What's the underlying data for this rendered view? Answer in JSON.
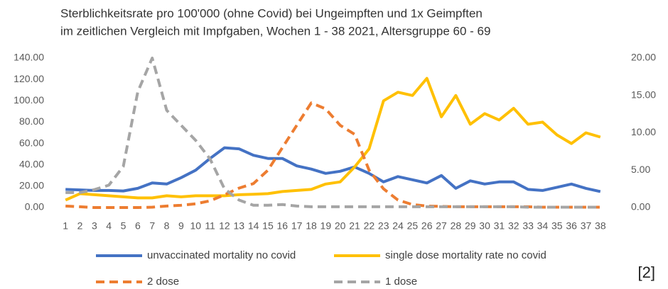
{
  "chart_data": {
    "type": "line",
    "title": [
      "Sterblichkeitsrate pro 100'000 (ohne Covid) bei Ungeimpften und 1x Geimpften",
      "im zeitlichen Vergleich mit Impfgaben, Wochen 1 - 38 2021, Altersgruppe 60 - 69"
    ],
    "categories": [
      "1",
      "2",
      "3",
      "4",
      "5",
      "6",
      "7",
      "8",
      "9",
      "10",
      "11",
      "12",
      "13",
      "14",
      "15",
      "16",
      "17",
      "18",
      "19",
      "20",
      "21",
      "22",
      "23",
      "24",
      "25",
      "26",
      "27",
      "28",
      "29",
      "30",
      "31",
      "32",
      "33",
      "34",
      "35",
      "36",
      "37",
      "38"
    ],
    "ylim": [
      0,
      140
    ],
    "yticks": [
      {
        "value": 0,
        "label": "0.00"
      },
      {
        "value": 20,
        "label": "20.00"
      },
      {
        "value": 40,
        "label": "40.00"
      },
      {
        "value": 60,
        "label": "60.00"
      },
      {
        "value": 80,
        "label": "80.00"
      },
      {
        "value": 100,
        "label": "100.00"
      },
      {
        "value": 120,
        "label": "120.00"
      },
      {
        "value": 140,
        "label": "140.00"
      }
    ],
    "y2lim": [
      0,
      20
    ],
    "y2ticks": [
      {
        "value": 0,
        "label": "0.00"
      },
      {
        "value": 5,
        "label": "5.00"
      },
      {
        "value": 10,
        "label": "10.00"
      },
      {
        "value": 15,
        "label": "15.00"
      },
      {
        "value": 20,
        "label": "20.00"
      }
    ],
    "grid": false,
    "legend": "bottom",
    "series": [
      {
        "name": "unvaccinated mortality no covid",
        "color": "#4472c4",
        "dashed": false,
        "values": [
          17,
          16.5,
          16,
          16,
          15.5,
          18,
          23,
          22,
          28,
          35,
          46,
          56,
          55,
          49,
          46,
          46,
          39,
          36,
          32,
          34,
          38,
          32,
          24,
          29,
          26,
          23,
          30,
          18,
          25,
          22,
          24,
          24,
          17,
          16,
          19,
          22,
          18,
          15
        ]
      },
      {
        "name": "single dose mortality rate no covid",
        "color": "#ffc000",
        "dashed": false,
        "values": [
          7,
          13,
          12,
          11,
          10,
          9,
          9,
          11,
          10,
          11,
          11,
          11,
          12,
          12.5,
          13,
          15,
          16,
          17,
          22,
          24,
          38,
          55,
          100,
          108,
          105,
          121,
          85,
          105,
          78,
          88,
          82,
          93,
          78,
          80,
          68,
          60,
          70,
          66
        ]
      },
      {
        "name": "2 dose",
        "color": "#ed7d31",
        "dashed": true,
        "axis": "y2",
        "values": [
          0.2,
          0.1,
          0,
          0,
          0,
          0,
          0.05,
          0.2,
          0.3,
          0.5,
          0.9,
          1.7,
          2.6,
          3.2,
          5,
          8,
          11,
          14,
          13.2,
          11,
          9.8,
          5,
          2.5,
          1,
          0.4,
          0.2,
          0.15,
          0.1,
          0.1,
          0.1,
          0.1,
          0.1,
          0.1,
          0.05,
          0.05,
          0.05,
          0.05,
          0.05
        ]
      },
      {
        "name": "1 dose",
        "color": "#a5a5a5",
        "dashed": true,
        "axis": "y2",
        "values": [
          2,
          2,
          2.4,
          3,
          5.5,
          15.5,
          20,
          13,
          11,
          9,
          6.5,
          2.5,
          1,
          0.3,
          0.3,
          0.4,
          0.2,
          0.1,
          0.1,
          0.1,
          0.1,
          0.1,
          0.1,
          0.1,
          0.1,
          0.1,
          0.1,
          0.1,
          0.1,
          0.1,
          0.1,
          0.1,
          0.05,
          0.05,
          0.05,
          0.05,
          0.05,
          0.05
        ]
      }
    ],
    "annotations": [
      "[2]"
    ]
  }
}
